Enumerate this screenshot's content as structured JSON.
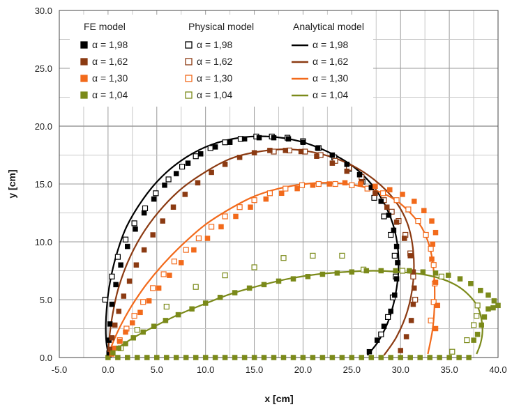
{
  "chart_data": {
    "type": "scatter",
    "xlabel": "x [cm]",
    "ylabel": "y [cm]",
    "xlim": [
      -5,
      40
    ],
    "ylim": [
      0,
      30
    ],
    "x_ticks": [
      "-5.0",
      "0.0",
      "5.0",
      "10.0",
      "15.0",
      "20.0",
      "25.0",
      "30.0",
      "35.0",
      "40.0"
    ],
    "y_ticks": [
      "0.0",
      "5.0",
      "10.0",
      "15.0",
      "20.0",
      "25.0",
      "30.0"
    ],
    "grid": true,
    "legend_groups": [
      {
        "title": "FE model",
        "marker": "filled-square",
        "entries": [
          "α = 1,98",
          "α = 1,62",
          "α = 1,30",
          "α = 1,04"
        ]
      },
      {
        "title": "Physical model",
        "marker": "open-square",
        "entries": [
          "α = 1,98",
          "α = 1,62",
          "α = 1,30",
          "α = 1,04"
        ]
      },
      {
        "title": "Analytical model",
        "marker": "line",
        "entries": [
          "α = 1,98",
          "α = 1,62",
          "α = 1,30",
          "α = 1,04"
        ]
      }
    ],
    "series_colors": {
      "1.98": "#000000",
      "1.62": "#8b3a12",
      "1.30": "#f26a1b",
      "1.04": "#7b8a1a"
    },
    "series": [
      {
        "alpha": "1.98",
        "kind": "analytical",
        "x": [
          26.6,
          27.8,
          28.9,
          29.6,
          29.8,
          29.4,
          28.4,
          27.0,
          25.0,
          22.5,
          19.6,
          16.5,
          13.5,
          10.6,
          8.0,
          5.6,
          3.6,
          1.9,
          0.8,
          0.1,
          -0.2,
          -0.2,
          0.0,
          0.3
        ],
        "y": [
          0.2,
          1.5,
          3.5,
          6.0,
          8.5,
          11.0,
          13.2,
          15.0,
          16.6,
          17.8,
          18.7,
          19.1,
          19.0,
          18.4,
          17.3,
          15.7,
          13.7,
          11.3,
          8.7,
          6.0,
          3.5,
          1.6,
          0.5,
          0.0
        ]
      },
      {
        "alpha": "1.98",
        "kind": "fe",
        "x": [
          26.8,
          27.6,
          28.3,
          29.0,
          29.4,
          29.6,
          29.7,
          29.6,
          29.3,
          28.8,
          28.0,
          27.0,
          25.8,
          24.5,
          23.0,
          21.5,
          20.0,
          18.5,
          17.0,
          15.5,
          14.0,
          12.5,
          11.0,
          9.5,
          8.2,
          7.0,
          5.8,
          4.7,
          3.7,
          2.8,
          2.0,
          1.3,
          0.8,
          0.4,
          0.2,
          0.1,
          0.1
        ],
        "y": [
          0.5,
          1.5,
          2.7,
          4.0,
          5.4,
          6.8,
          8.2,
          9.6,
          11.0,
          12.3,
          13.5,
          14.7,
          15.8,
          16.7,
          17.5,
          18.1,
          18.6,
          18.9,
          19.0,
          19.0,
          18.9,
          18.6,
          18.2,
          17.6,
          16.8,
          15.9,
          14.9,
          13.7,
          12.5,
          11.1,
          9.6,
          8.0,
          6.3,
          4.6,
          2.9,
          1.5,
          0.4
        ]
      },
      {
        "alpha": "1.98",
        "kind": "physical",
        "x": [
          28.0,
          28.7,
          29.2,
          29.5,
          29.4,
          29.0,
          28.3,
          27.3,
          26.1,
          24.7,
          23.2,
          21.6,
          20.0,
          18.4,
          16.8,
          15.2,
          13.6,
          12.0,
          10.5,
          9.0,
          7.6,
          6.2,
          4.9,
          3.8,
          2.7,
          1.8,
          1.0,
          0.4,
          -0.3
        ],
        "y": [
          2.0,
          3.5,
          5.2,
          7.0,
          8.8,
          10.6,
          12.2,
          13.8,
          15.2,
          16.3,
          17.3,
          18.1,
          18.7,
          19.0,
          19.1,
          19.1,
          18.9,
          18.6,
          18.1,
          17.4,
          16.5,
          15.4,
          14.2,
          12.9,
          11.6,
          10.2,
          8.7,
          7.0,
          5.0
        ]
      },
      {
        "alpha": "1.62",
        "kind": "analytical",
        "x": [
          28.3,
          29.6,
          30.7,
          31.3,
          31.3,
          30.7,
          29.4,
          27.4,
          24.8,
          21.8,
          18.6,
          15.5,
          12.6,
          9.9,
          7.4,
          5.2,
          3.4,
          2.0,
          1.0,
          0.4,
          0.1,
          0.0
        ],
        "y": [
          0.2,
          1.8,
          4.0,
          6.6,
          9.2,
          11.6,
          13.6,
          15.3,
          16.7,
          17.6,
          18.0,
          17.8,
          17.2,
          16.0,
          14.5,
          12.6,
          10.5,
          8.2,
          5.8,
          3.4,
          1.4,
          0.0
        ]
      },
      {
        "alpha": "1.62",
        "kind": "fe",
        "x": [
          30.0,
          30.6,
          31.1,
          31.3,
          31.4,
          31.3,
          31.0,
          30.4,
          29.6,
          28.6,
          27.4,
          26.0,
          24.5,
          23.0,
          21.4,
          19.8,
          18.2,
          16.6,
          15.0,
          13.5,
          12.0,
          10.6,
          9.2,
          7.9,
          6.7,
          5.6,
          4.6,
          3.7,
          2.9,
          2.2,
          1.6,
          1.1,
          0.7,
          0.4,
          0.2
        ],
        "y": [
          0.6,
          1.8,
          3.2,
          4.6,
          6.0,
          7.4,
          8.8,
          10.3,
          11.7,
          13.0,
          14.2,
          15.2,
          16.1,
          16.8,
          17.4,
          17.8,
          17.9,
          17.9,
          17.7,
          17.3,
          16.7,
          16.0,
          15.1,
          14.1,
          13.0,
          11.8,
          10.6,
          9.3,
          8.0,
          6.6,
          5.3,
          4.0,
          2.8,
          1.7,
          0.7
        ]
      },
      {
        "alpha": "1.62",
        "kind": "physical",
        "x": [
          31.5,
          31.3,
          31.0,
          30.5,
          29.8,
          29.1,
          28.3,
          27.2,
          26.0,
          24.7,
          23.3,
          21.8,
          20.2,
          18.6,
          17.0
        ],
        "y": [
          5.0,
          7.0,
          9.0,
          10.6,
          11.8,
          12.6,
          13.6,
          14.7,
          15.6,
          16.4,
          17.0,
          17.5,
          17.8,
          17.9,
          17.8
        ]
      },
      {
        "alpha": "1.30",
        "kind": "analytical",
        "x": [
          32.8,
          33.3,
          33.5,
          33.4,
          33.0,
          32.2,
          31.0,
          29.5,
          27.6,
          25.3,
          22.8,
          20.2,
          17.5,
          14.9,
          12.4,
          10.0,
          7.8,
          5.8,
          4.0,
          2.6,
          1.5,
          0.7,
          0.2,
          0.0
        ],
        "y": [
          0.3,
          2.5,
          5.0,
          7.5,
          9.5,
          11.2,
          12.5,
          13.6,
          14.4,
          14.9,
          15.1,
          15.0,
          14.6,
          13.9,
          12.8,
          11.5,
          9.9,
          8.2,
          6.4,
          4.7,
          3.1,
          1.7,
          0.6,
          0.0
        ]
      },
      {
        "alpha": "1.30",
        "kind": "fe",
        "x": [
          33.6,
          33.8,
          33.6,
          33.2,
          33.3,
          33.6,
          33.2,
          32.4,
          31.4,
          30.2,
          28.9,
          27.4,
          25.9,
          24.3,
          22.7,
          21.0,
          19.4,
          17.8,
          16.2,
          14.6,
          13.1,
          11.6,
          10.2,
          8.8,
          7.5,
          6.3,
          5.2,
          4.2,
          3.3,
          2.5,
          1.8,
          1.2,
          0.7,
          0.4
        ],
        "y": [
          2.5,
          4.5,
          6.5,
          8.5,
          9.8,
          10.8,
          11.8,
          12.7,
          13.5,
          14.1,
          14.5,
          14.8,
          15.0,
          15.1,
          15.0,
          14.9,
          14.6,
          14.2,
          13.7,
          13.0,
          12.2,
          11.3,
          10.3,
          9.3,
          8.2,
          7.1,
          6.0,
          4.9,
          3.9,
          3.0,
          2.2,
          1.4,
          0.8,
          0.3
        ]
      },
      {
        "alpha": "1.30",
        "kind": "physical",
        "x": [
          33.1,
          33.4,
          33.5,
          33.4,
          33.1,
          32.6,
          31.8,
          30.8,
          29.6,
          28.2,
          26.6,
          25.0,
          23.3,
          21.6,
          19.9,
          18.2,
          16.6,
          15.0,
          13.5,
          12.0,
          10.6,
          9.3,
          8.0,
          6.8,
          5.7,
          4.6,
          3.6,
          2.7,
          1.9,
          1.2
        ],
        "y": [
          3.2,
          4.8,
          6.4,
          8.0,
          9.4,
          10.6,
          11.8,
          12.8,
          13.6,
          14.2,
          14.6,
          14.9,
          15.0,
          15.0,
          14.9,
          14.6,
          14.2,
          13.6,
          13.0,
          12.2,
          11.3,
          10.3,
          9.3,
          8.3,
          7.2,
          6.0,
          4.8,
          3.6,
          2.5,
          1.5
        ]
      },
      {
        "alpha": "1.04",
        "kind": "analytical",
        "x": [
          37.8,
          38.2,
          38.4,
          38.3,
          37.9,
          37.0,
          35.8,
          34.2,
          32.2,
          29.8,
          27.2,
          24.4,
          21.5,
          18.5,
          15.5,
          12.6,
          9.8,
          7.2,
          4.8,
          2.8,
          1.3,
          0.4,
          0.0
        ],
        "y": [
          0.3,
          1.2,
          2.2,
          3.3,
          4.4,
          5.4,
          6.2,
          6.8,
          7.2,
          7.4,
          7.5,
          7.4,
          7.2,
          6.8,
          6.2,
          5.5,
          4.6,
          3.7,
          2.7,
          1.8,
          1.0,
          0.4,
          0.0
        ]
      },
      {
        "alpha": "1.04",
        "kind": "fe",
        "x": [
          37.5,
          37.9,
          38.3,
          38.6,
          39.0,
          39.5,
          40.0,
          39.6,
          39.0,
          38.2,
          37.2,
          36.1,
          34.9,
          33.6,
          32.3,
          30.9,
          29.5,
          28.0,
          26.5,
          25.0,
          23.5,
          22.0,
          20.5,
          19.0,
          17.5,
          16.0,
          14.5,
          13.0,
          11.5,
          10.0,
          8.6,
          7.2,
          5.9,
          4.7,
          3.6,
          2.6,
          1.8,
          1.1,
          0.5
        ],
        "y": [
          1.5,
          2.0,
          2.8,
          3.5,
          4.2,
          4.3,
          4.5,
          4.9,
          5.4,
          5.8,
          6.4,
          6.8,
          7.1,
          7.3,
          7.4,
          7.5,
          7.5,
          7.5,
          7.5,
          7.4,
          7.3,
          7.2,
          7.0,
          6.8,
          6.6,
          6.3,
          6.0,
          5.6,
          5.2,
          4.7,
          4.2,
          3.7,
          3.2,
          2.7,
          2.2,
          1.7,
          1.2,
          0.8,
          0.4
        ]
      },
      {
        "alpha": "1.04",
        "kind": "physical",
        "x": [
          35.3,
          36.8,
          37.5,
          37.8,
          37.9,
          34.2,
          30.2,
          26.2,
          24.0,
          21.0,
          18.0,
          15.0,
          12.0,
          9.0,
          6.0,
          3.0,
          1.3
        ],
        "y": [
          0.5,
          1.5,
          2.8,
          3.6,
          4.5,
          7.0,
          7.5,
          7.6,
          8.8,
          8.8,
          8.6,
          7.8,
          7.1,
          6.1,
          4.4,
          2.4,
          0.8
        ]
      },
      {
        "alpha": "1.04",
        "kind": "fe-baseline",
        "x": [
          0,
          1,
          2,
          3,
          4,
          5,
          6,
          7,
          8,
          9,
          10,
          11,
          12,
          13,
          14,
          15,
          16,
          17,
          18,
          19,
          20,
          21,
          22,
          23,
          24,
          25,
          26,
          27,
          28,
          29,
          30,
          31,
          32,
          33,
          34,
          35,
          36,
          37
        ],
        "y": [
          0,
          0,
          0,
          0,
          0,
          0,
          0,
          0,
          0,
          0,
          0,
          0,
          0,
          0,
          0,
          0,
          0,
          0,
          0,
          0,
          0,
          0,
          0,
          0,
          0,
          0,
          0,
          0,
          0,
          0,
          0,
          0,
          0,
          0,
          0,
          0,
          0,
          0
        ]
      }
    ]
  }
}
